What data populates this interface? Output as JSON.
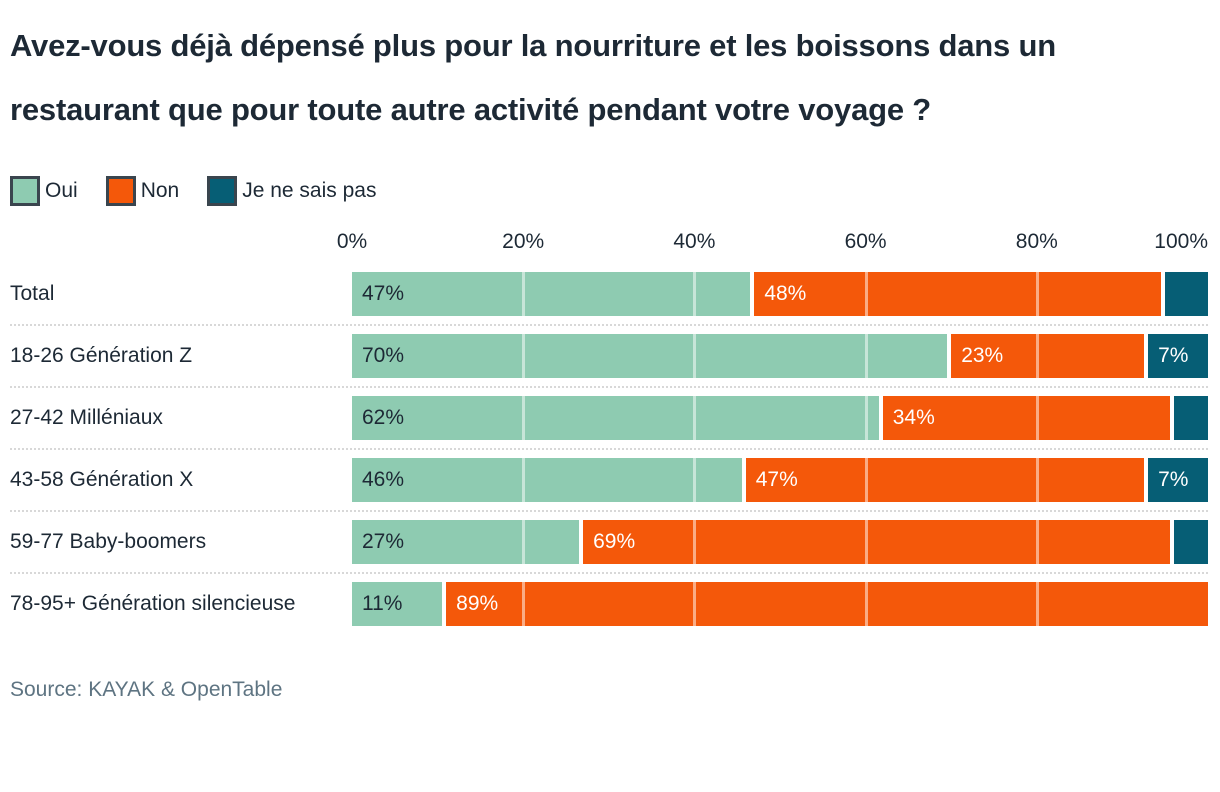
{
  "title": "Avez-vous déjà dépensé plus pour la nourriture et les boissons dans un restaurant que pour toute autre activité pendant votre voyage ?",
  "legend": [
    {
      "label": "Oui",
      "color": "#8ecbb1"
    },
    {
      "label": "Non",
      "color": "#f4580a"
    },
    {
      "label": "Je ne sais pas",
      "color": "#065e75"
    }
  ],
  "source": "Source: KAYAK & OpenTable",
  "colors": {
    "oui": "#8ecbb1",
    "non": "#f4580a",
    "je_ne_sais_pas": "#065e75",
    "text": "#1d2935",
    "source_text": "#5e7482",
    "separator": "#d8d8d8",
    "legend_border": "#3a454e"
  },
  "chart_data": {
    "type": "bar",
    "orientation": "horizontal",
    "stacked": true,
    "title": "Avez-vous déjà dépensé plus pour la nourriture et les boissons dans un restaurant que pour toute autre activité pendant votre voyage ?",
    "xlabel": "",
    "ylabel": "",
    "xlim": [
      0,
      100
    ],
    "ticks": [
      "0%",
      "20%",
      "40%",
      "60%",
      "80%",
      "100%"
    ],
    "grid": "white vertical lines over bars every 20%",
    "legend_position": "top",
    "categories": [
      "Total",
      "18-26 Génération Z",
      "27-42 Milléniaux",
      "43-58 Génération X",
      "59-77 Baby-boomers",
      "78-95+ Génération silencieuse"
    ],
    "series": [
      {
        "name": "Oui",
        "color": "#8ecbb1",
        "values": [
          47,
          70,
          62,
          46,
          27,
          11
        ]
      },
      {
        "name": "Non",
        "color": "#f4580a",
        "values": [
          48,
          23,
          34,
          47,
          69,
          89
        ]
      },
      {
        "name": "Je ne sais pas",
        "color": "#065e75",
        "values": [
          5,
          7,
          4,
          7,
          4,
          0
        ]
      }
    ],
    "labels": [
      [
        "47%",
        "48%",
        ""
      ],
      [
        "70%",
        "23%",
        "7%"
      ],
      [
        "62%",
        "34%",
        ""
      ],
      [
        "46%",
        "47%",
        "7%"
      ],
      [
        "27%",
        "69%",
        ""
      ],
      [
        "11%",
        "89%",
        ""
      ]
    ]
  }
}
